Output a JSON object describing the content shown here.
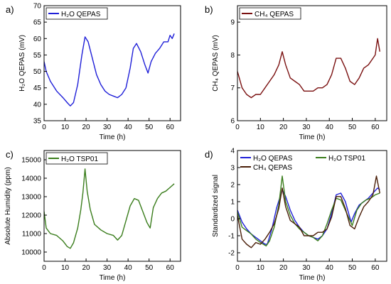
{
  "chart_data": [
    {
      "type": "line",
      "panel_label": "a)",
      "xlabel": "Time (h)",
      "ylabel": "H₂O QEPAS (mV)",
      "xlim": [
        0,
        65
      ],
      "ylim": [
        35,
        70
      ],
      "xticks": [
        0,
        10,
        20,
        30,
        40,
        50,
        60
      ],
      "yticks": [
        35,
        40,
        45,
        50,
        55,
        60,
        65,
        70
      ],
      "legend_position": "top-left",
      "series": [
        {
          "name": "H₂O QEPAS",
          "color": "#1f1fd8",
          "x": [
            0,
            1,
            3,
            6,
            9,
            11,
            12.5,
            14,
            16,
            18,
            19.5,
            21,
            23,
            25,
            27,
            29,
            31,
            33,
            35,
            37,
            39,
            41,
            42.5,
            44,
            46,
            48,
            49.5,
            51,
            53,
            55,
            57,
            59,
            60,
            61,
            62
          ],
          "y": [
            53,
            50,
            47,
            44,
            42,
            40.5,
            39.5,
            40.5,
            46,
            55,
            60.5,
            59,
            54,
            49,
            46,
            44,
            43,
            42.5,
            42,
            43,
            45,
            51,
            57,
            58.5,
            56,
            52,
            49.5,
            53,
            55.5,
            57,
            59,
            59,
            61,
            60,
            61.5
          ]
        }
      ]
    },
    {
      "type": "line",
      "panel_label": "b)",
      "xlabel": "Time (h)",
      "ylabel": "CH₄ QEPAS (mV)",
      "xlim": [
        0,
        65
      ],
      "ylim": [
        6,
        9.5
      ],
      "xticks": [
        0,
        10,
        20,
        30,
        40,
        50,
        60
      ],
      "yticks": [
        6,
        7,
        8,
        9
      ],
      "legend_position": "top-left",
      "series": [
        {
          "name": "CH₄ QEPAS",
          "color": "#7a1010",
          "x": [
            0,
            2,
            4,
            6,
            8,
            10,
            12,
            14,
            16,
            18,
            19.5,
            21,
            23,
            25,
            27,
            29,
            31,
            33,
            35,
            37,
            39,
            41,
            43,
            45,
            47,
            49,
            51,
            53,
            55,
            57,
            59,
            60,
            61,
            62
          ],
          "y": [
            7.5,
            7.0,
            6.8,
            6.7,
            6.8,
            6.8,
            7.0,
            7.2,
            7.4,
            7.7,
            8.1,
            7.7,
            7.3,
            7.2,
            7.1,
            6.9,
            6.9,
            6.9,
            7.0,
            7.0,
            7.1,
            7.4,
            7.9,
            7.9,
            7.6,
            7.2,
            7.1,
            7.3,
            7.6,
            7.7,
            7.9,
            8.0,
            8.5,
            8.1
          ]
        }
      ]
    },
    {
      "type": "line",
      "panel_label": "c)",
      "xlabel": "Time (h)",
      "ylabel": "Absolute Humidity (ppm)",
      "xlim": [
        0,
        65
      ],
      "ylim": [
        9500,
        15500
      ],
      "xticks": [
        0,
        10,
        20,
        30,
        40,
        50,
        60
      ],
      "yticks": [
        10000,
        11000,
        12000,
        13000,
        14000,
        15000
      ],
      "legend_position": "top-left",
      "series": [
        {
          "name": "H₂O TSP01",
          "color": "#3a7d1c",
          "x": [
            0,
            1,
            3,
            6,
            9,
            11,
            12.5,
            14,
            16,
            17.5,
            18.5,
            19.5,
            20.5,
            22,
            24,
            27,
            30,
            33,
            35,
            37,
            39,
            41,
            43,
            45,
            47,
            49,
            50.5,
            52,
            54,
            56,
            58,
            60,
            62
          ],
          "y": [
            12200,
            11300,
            11000,
            10900,
            10600,
            10300,
            10200,
            10500,
            11300,
            12300,
            13200,
            14500,
            13300,
            12300,
            11500,
            11200,
            11000,
            10900,
            10650,
            10900,
            11700,
            12500,
            12900,
            12800,
            12200,
            11600,
            11300,
            12400,
            12900,
            13200,
            13300,
            13500,
            13700
          ]
        }
      ]
    },
    {
      "type": "line",
      "panel_label": "d)",
      "xlabel": "Time (h)",
      "ylabel": "Standardized signal",
      "xlim": [
        0,
        65
      ],
      "ylim": [
        -2.5,
        4
      ],
      "xticks": [
        0,
        10,
        20,
        30,
        40,
        50,
        60
      ],
      "yticks": [
        -2,
        -1,
        0,
        1,
        2,
        3,
        4
      ],
      "legend_position": "top",
      "series": [
        {
          "name": "H₂O QEPAS",
          "color": "#1f1fd8",
          "x": [
            0,
            2,
            4,
            6,
            8,
            10,
            12,
            13,
            15,
            17,
            19.5,
            21,
            23,
            25,
            27,
            29,
            31,
            33,
            35,
            37,
            39,
            41,
            43,
            45,
            47,
            49.5,
            51,
            53,
            55,
            57,
            59,
            61,
            62
          ],
          "y": [
            0.5,
            -0.2,
            -0.6,
            -0.9,
            -1.1,
            -1.3,
            -1.5,
            -1.5,
            -0.6,
            0.6,
            1.7,
            1.3,
            0.5,
            -0.1,
            -0.5,
            -0.8,
            -1.0,
            -1.1,
            -1.2,
            -1.0,
            -0.6,
            0.3,
            1.4,
            1.5,
            1.0,
            -0.2,
            0.3,
            0.8,
            1.0,
            1.2,
            1.5,
            1.8,
            1.7
          ]
        },
        {
          "name": "H₂O TSP01",
          "color": "#3a7d1c",
          "x": [
            0,
            2,
            4,
            6,
            8,
            10,
            12.5,
            14,
            16,
            18,
            19.5,
            21,
            23,
            25,
            27,
            29,
            31,
            33,
            35,
            37,
            39,
            41,
            43,
            45,
            47,
            50,
            52,
            54,
            56,
            58,
            60,
            62
          ],
          "y": [
            0.4,
            -0.5,
            -0.7,
            -0.9,
            -1.2,
            -1.4,
            -1.6,
            -1.3,
            -0.5,
            0.8,
            2.5,
            1.0,
            0.2,
            -0.3,
            -0.6,
            -0.8,
            -1.0,
            -1.1,
            -1.3,
            -1.0,
            -0.3,
            0.5,
            1.2,
            1.1,
            0.5,
            -0.4,
            0.5,
            0.9,
            1.1,
            1.2,
            1.4,
            1.5
          ]
        },
        {
          "name": "CH₄ QEPAS",
          "color": "#4a1e08",
          "x": [
            0,
            2,
            4,
            6,
            8,
            10,
            12,
            14,
            16,
            18,
            19.5,
            21,
            23,
            25,
            27,
            29,
            31,
            33,
            35,
            37,
            39,
            41,
            43,
            45,
            47,
            49,
            51,
            53,
            55,
            57,
            59,
            60.5,
            62
          ],
          "y": [
            0.2,
            -1.2,
            -1.5,
            -1.7,
            -1.4,
            -1.5,
            -1.2,
            -0.8,
            -0.3,
            0.6,
            1.8,
            0.7,
            -0.1,
            -0.3,
            -0.5,
            -1.0,
            -1.0,
            -1.0,
            -0.8,
            -0.8,
            -0.6,
            0.1,
            1.3,
            1.3,
            0.6,
            -0.4,
            -0.6,
            0.1,
            0.7,
            1.0,
            1.4,
            2.5,
            1.5
          ]
        }
      ]
    }
  ]
}
